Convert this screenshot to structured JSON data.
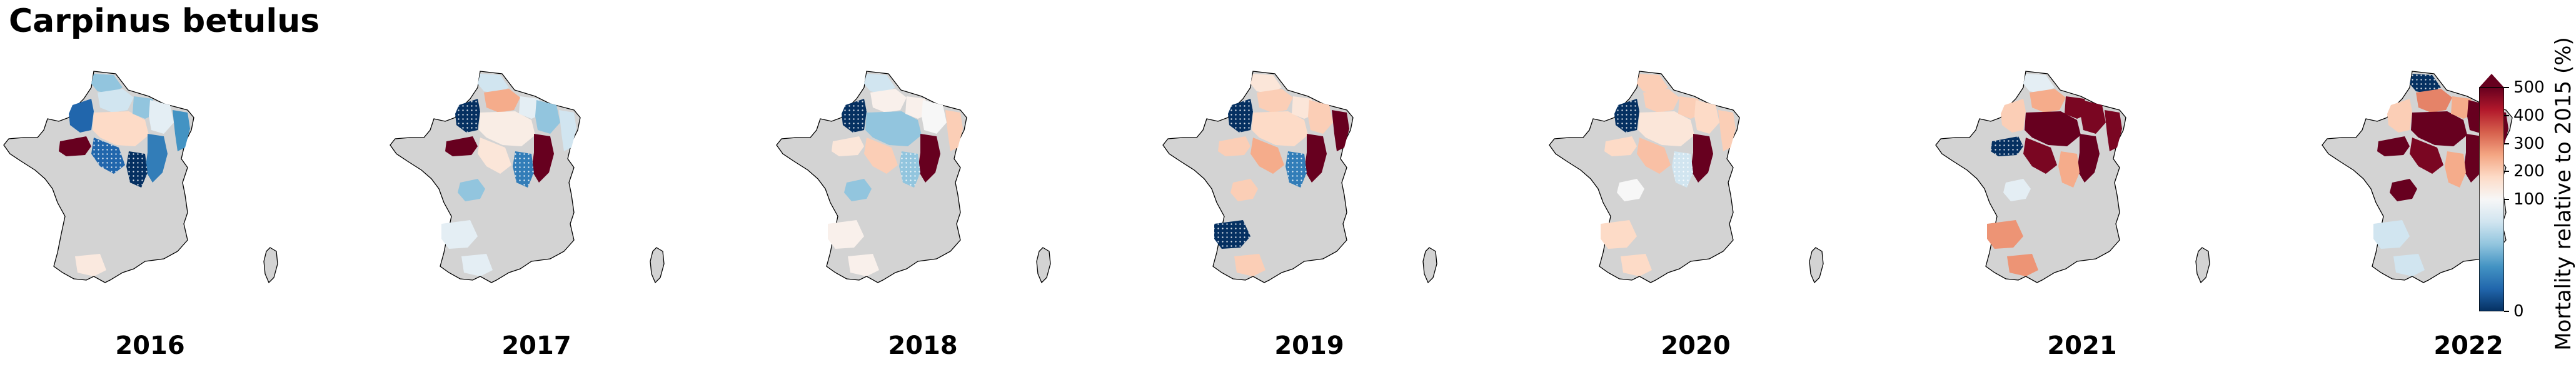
{
  "title": "Carpinus betulus",
  "colorbar": {
    "label": "Mortality relative to 2015 (%)",
    "ticks": [
      {
        "value": 0,
        "label": "0"
      },
      {
        "value": 100,
        "label": "100"
      },
      {
        "value": 200,
        "label": "200"
      },
      {
        "value": 300,
        "label": "300"
      },
      {
        "value": 400,
        "label": "400"
      },
      {
        "value": 500,
        "label": "500"
      }
    ],
    "range": [
      0,
      500
    ],
    "extend": "max",
    "colormap": [
      "#053061",
      "#2166ac",
      "#4393c3",
      "#92c5de",
      "#d1e5f0",
      "#f7f7f7",
      "#fddbc7",
      "#f4a582",
      "#d6604d",
      "#b2182b",
      "#67001f"
    ]
  },
  "colors": {
    "land": "#d3d3d3",
    "outline": "#000000"
  },
  "panels": [
    {
      "year": "2016",
      "regions": [
        {
          "id": "brittany",
          "value": null
        },
        {
          "id": "normandy",
          "value": null
        },
        {
          "id": "northwest-paris",
          "value": 20,
          "hatched": false
        },
        {
          "id": "north",
          "value": 60
        },
        {
          "id": "picardy",
          "value": 80
        },
        {
          "id": "paris-basin",
          "value": 180
        },
        {
          "id": "ardennes",
          "value": 60
        },
        {
          "id": "lorraine",
          "value": 90
        },
        {
          "id": "alsace",
          "value": 40
        },
        {
          "id": "champagne",
          "value": 20,
          "hatched": true
        },
        {
          "id": "loire",
          "value": 500
        },
        {
          "id": "burgundy",
          "value": 30
        },
        {
          "id": "jura",
          "value": 0,
          "hatched": true
        },
        {
          "id": "alps",
          "value": 90
        },
        {
          "id": "southwest",
          "value": null
        },
        {
          "id": "pyrenees",
          "value": 140
        },
        {
          "id": "massif-central",
          "value": null
        }
      ]
    },
    {
      "year": "2017",
      "regions": [
        {
          "id": "north",
          "value": 80
        },
        {
          "id": "northwest-paris",
          "value": 0,
          "hatched": true
        },
        {
          "id": "picardy",
          "value": 250
        },
        {
          "id": "paris-basin",
          "value": 130
        },
        {
          "id": "ardennes",
          "value": 90
        },
        {
          "id": "lorraine",
          "value": 60
        },
        {
          "id": "alsace",
          "value": 80
        },
        {
          "id": "loire",
          "value": 520
        },
        {
          "id": "champagne",
          "value": 150
        },
        {
          "id": "burgundy",
          "value": 520
        },
        {
          "id": "jura",
          "value": 30,
          "hatched": true
        },
        {
          "id": "massif-central",
          "value": 60
        },
        {
          "id": "southwest",
          "value": 90
        },
        {
          "id": "pyrenees",
          "value": 90
        }
      ]
    },
    {
      "year": "2018",
      "regions": [
        {
          "id": "north",
          "value": 80
        },
        {
          "id": "northwest-paris",
          "value": 0,
          "hatched": true
        },
        {
          "id": "picardy",
          "value": 120
        },
        {
          "id": "paris-basin",
          "value": 60
        },
        {
          "id": "ardennes",
          "value": 120
        },
        {
          "id": "lorraine",
          "value": 100
        },
        {
          "id": "alsace",
          "value": 200
        },
        {
          "id": "loire",
          "value": 150
        },
        {
          "id": "champagne",
          "value": 200
        },
        {
          "id": "burgundy",
          "value": 520
        },
        {
          "id": "jura",
          "value": 60,
          "hatched": true
        },
        {
          "id": "massif-central",
          "value": 60
        },
        {
          "id": "southwest",
          "value": 120
        },
        {
          "id": "pyrenees",
          "value": 120
        }
      ]
    },
    {
      "year": "2019",
      "regions": [
        {
          "id": "north",
          "value": 150
        },
        {
          "id": "northwest-paris",
          "value": 0,
          "hatched": true
        },
        {
          "id": "picardy",
          "value": 200
        },
        {
          "id": "paris-basin",
          "value": 180
        },
        {
          "id": "ardennes",
          "value": 150
        },
        {
          "id": "lorraine",
          "value": 200
        },
        {
          "id": "alsace",
          "value": 520
        },
        {
          "id": "loire",
          "value": 200
        },
        {
          "id": "champagne",
          "value": 250
        },
        {
          "id": "burgundy",
          "value": 520
        },
        {
          "id": "jura",
          "value": 30,
          "hatched": true
        },
        {
          "id": "massif-central",
          "value": 200
        },
        {
          "id": "southwest",
          "value": 0,
          "hatched": true
        },
        {
          "id": "pyrenees",
          "value": 200
        }
      ]
    },
    {
      "year": "2020",
      "regions": [
        {
          "id": "north",
          "value": 200
        },
        {
          "id": "northwest-paris",
          "value": 0,
          "hatched": true
        },
        {
          "id": "picardy",
          "value": 200
        },
        {
          "id": "paris-basin",
          "value": 150
        },
        {
          "id": "ardennes",
          "value": 200
        },
        {
          "id": "lorraine",
          "value": 180
        },
        {
          "id": "alsace",
          "value": 200
        },
        {
          "id": "loire",
          "value": 180
        },
        {
          "id": "champagne",
          "value": 220
        },
        {
          "id": "burgundy",
          "value": 520
        },
        {
          "id": "jura",
          "value": 80,
          "hatched": true
        },
        {
          "id": "massif-central",
          "value": 100
        },
        {
          "id": "southwest",
          "value": 180
        },
        {
          "id": "pyrenees",
          "value": 180
        }
      ]
    },
    {
      "year": "2021",
      "regions": [
        {
          "id": "north",
          "value": 90
        },
        {
          "id": "northwest-paris",
          "value": 200
        },
        {
          "id": "picardy",
          "value": 250
        },
        {
          "id": "paris-basin",
          "value": 520
        },
        {
          "id": "ardennes",
          "value": 480
        },
        {
          "id": "lorraine",
          "value": 480
        },
        {
          "id": "alsace",
          "value": 480
        },
        {
          "id": "loire",
          "value": 0,
          "hatched": true
        },
        {
          "id": "champagne",
          "value": 480
        },
        {
          "id": "burgundy",
          "value": 520
        },
        {
          "id": "jura",
          "value": 250
        },
        {
          "id": "massif-central",
          "value": 90
        },
        {
          "id": "southwest",
          "value": 280
        },
        {
          "id": "pyrenees",
          "value": 280
        }
      ]
    },
    {
      "year": "2022",
      "regions": [
        {
          "id": "north",
          "value": 0,
          "hatched": true
        },
        {
          "id": "northwest-paris",
          "value": 200
        },
        {
          "id": "picardy",
          "value": 300
        },
        {
          "id": "paris-basin",
          "value": 520
        },
        {
          "id": "ardennes",
          "value": 250
        },
        {
          "id": "lorraine",
          "value": 520
        },
        {
          "id": "alsace",
          "value": 520
        },
        {
          "id": "loire",
          "value": 520
        },
        {
          "id": "champagne",
          "value": 480
        },
        {
          "id": "burgundy",
          "value": 520
        },
        {
          "id": "jura",
          "value": 250
        },
        {
          "id": "massif-central",
          "value": 520
        },
        {
          "id": "southwest",
          "value": 80
        },
        {
          "id": "pyrenees",
          "value": 80
        }
      ]
    }
  ]
}
